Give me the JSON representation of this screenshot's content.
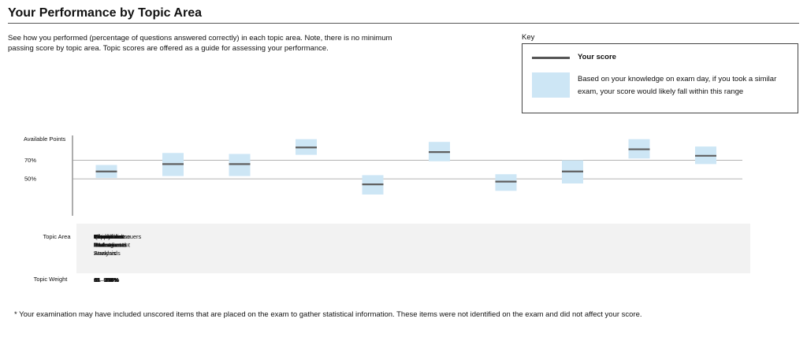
{
  "header": {
    "title": "Your Performance by Topic Area",
    "intro": "See how you performed (percentage of questions answered correctly) in each topic area. Note, there is no minimum passing score by topic area. Topic scores are offered as a guide for assessing your performance."
  },
  "key": {
    "title": "Key",
    "score_label": "Your score",
    "range_label": "Based on your knowledge on exam day, if you took a similar exam, your score would likely fall within this range"
  },
  "footnote": "* Your examination may have included unscored items that are placed on the exam to gather statistical information. These items were not identified on the exam and did not affect your score.",
  "colors": {
    "range_fill": "#cde6f5",
    "score_line": "#5f5f5f",
    "table_bg": "#f2f2f2",
    "reference_line": "#9a9a9a"
  },
  "chart_data": {
    "type": "range",
    "y_axis_labels": [
      "Available Points",
      "70%",
      "50%"
    ],
    "reference_lines": [
      70,
      50
    ],
    "ylim": [
      10,
      97
    ],
    "row_labels": {
      "topic_area": "Topic Area",
      "topic_weight": "Topic Weight"
    },
    "categories": [
      "Ethical and Professional Standards",
      "Quantitative Methods",
      "Economics",
      "Financial Statement Analysis",
      "Corporate Issuers",
      "Equity Investments",
      "Fixed Income",
      "Derivatives",
      "Alternative Investments",
      "Portfolio Management"
    ],
    "category_lines": [
      [
        "Ethical and",
        "Professional",
        "Standards"
      ],
      [
        "Quantitative",
        "Methods"
      ],
      [
        "Economics"
      ],
      [
        "Financial",
        "Statement",
        "Analysis"
      ],
      [
        "Corporate Issuers"
      ],
      [
        "Equity",
        "Investments"
      ],
      [
        "Fixed Income"
      ],
      [
        "Derivatives"
      ],
      [
        "Alternative",
        "Investments"
      ],
      [
        "Portfolio",
        "Management"
      ]
    ],
    "weights": [
      "15 – 20%",
      "6 – 9%",
      "6 – 9%",
      "11 – 14%",
      "6 – 9%",
      "11 – 14%",
      "11 – 14%",
      "5 – 8%",
      "7 – 10%",
      "8 – 12%"
    ],
    "series": [
      {
        "name": "Your score",
        "values": [
          58,
          66,
          66,
          84,
          44,
          79,
          47,
          58,
          82,
          75
        ]
      }
    ],
    "ranges": [
      [
        51,
        65
      ],
      [
        53,
        78
      ],
      [
        53,
        77
      ],
      [
        76,
        93
      ],
      [
        33,
        54
      ],
      [
        69,
        90
      ],
      [
        37,
        55
      ],
      [
        45,
        70
      ],
      [
        72,
        93
      ],
      [
        66,
        85
      ]
    ]
  }
}
